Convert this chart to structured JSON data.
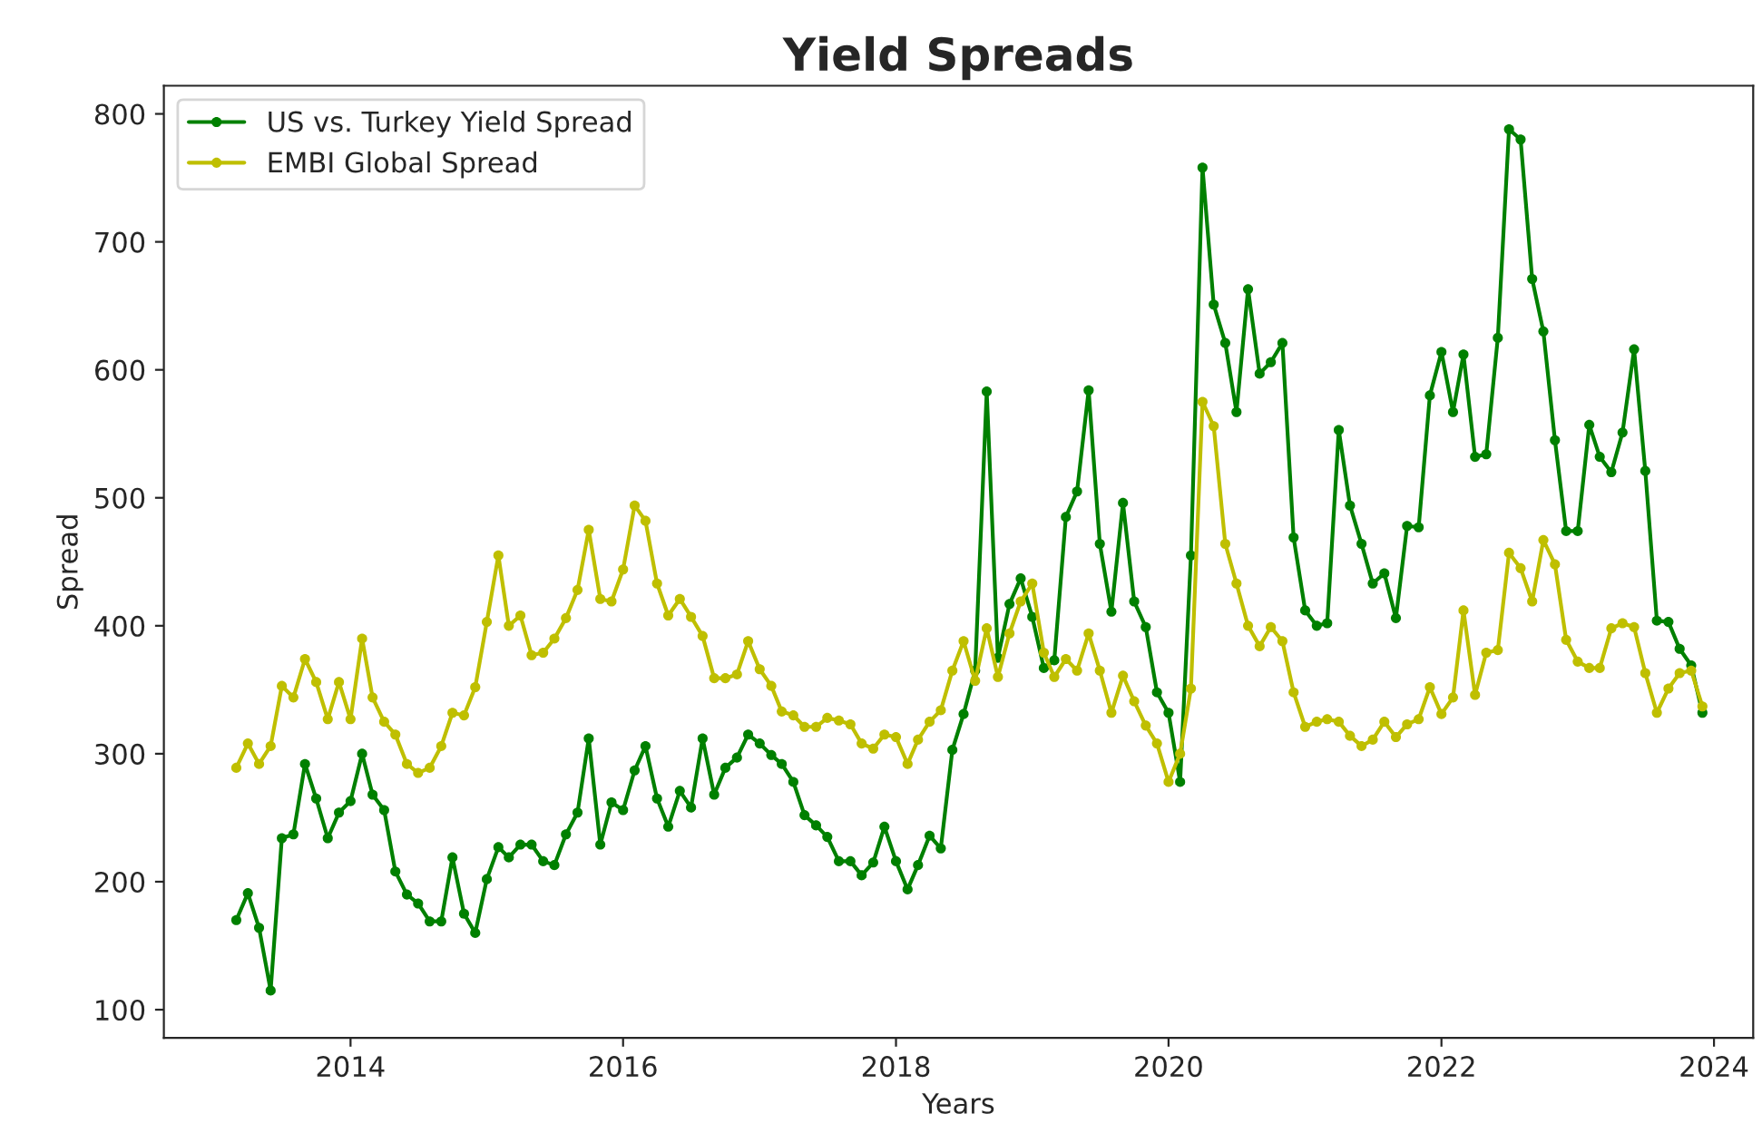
{
  "chart_data": {
    "type": "line",
    "title": "Yield Spreads",
    "xlabel": "Years",
    "ylabel": "Spread",
    "x": [
      "2013-03",
      "2013-04",
      "2013-05",
      "2013-06",
      "2013-07",
      "2013-08",
      "2013-09",
      "2013-10",
      "2013-11",
      "2013-12",
      "2014-01",
      "2014-02",
      "2014-03",
      "2014-04",
      "2014-05",
      "2014-06",
      "2014-07",
      "2014-08",
      "2014-09",
      "2014-10",
      "2014-11",
      "2014-12",
      "2015-01",
      "2015-02",
      "2015-03",
      "2015-04",
      "2015-05",
      "2015-06",
      "2015-07",
      "2015-08",
      "2015-09",
      "2015-10",
      "2015-11",
      "2015-12",
      "2016-01",
      "2016-02",
      "2016-03",
      "2016-04",
      "2016-05",
      "2016-06",
      "2016-07",
      "2016-08",
      "2016-09",
      "2016-10",
      "2016-11",
      "2016-12",
      "2017-01",
      "2017-02",
      "2017-03",
      "2017-04",
      "2017-05",
      "2017-06",
      "2017-07",
      "2017-08",
      "2017-09",
      "2017-10",
      "2017-11",
      "2017-12",
      "2018-01",
      "2018-02",
      "2018-03",
      "2018-04",
      "2018-05",
      "2018-06",
      "2018-07",
      "2018-08",
      "2018-09",
      "2018-10",
      "2018-11",
      "2018-12",
      "2019-01",
      "2019-02",
      "2019-03",
      "2019-04",
      "2019-05",
      "2019-06",
      "2019-07",
      "2019-08",
      "2019-09",
      "2019-10",
      "2019-11",
      "2019-12",
      "2020-01",
      "2020-02",
      "2020-03",
      "2020-04",
      "2020-05",
      "2020-06",
      "2020-07",
      "2020-08",
      "2020-09",
      "2020-10",
      "2020-11",
      "2020-12",
      "2021-01",
      "2021-02",
      "2021-03",
      "2021-04",
      "2021-05",
      "2021-06",
      "2021-07",
      "2021-08",
      "2021-09",
      "2021-10",
      "2021-11",
      "2021-12",
      "2022-01",
      "2022-02",
      "2022-03",
      "2022-04",
      "2022-05",
      "2022-06",
      "2022-07",
      "2022-08",
      "2022-09",
      "2022-10",
      "2022-11",
      "2022-12",
      "2023-01",
      "2023-02",
      "2023-03",
      "2023-04",
      "2023-05",
      "2023-06",
      "2023-07",
      "2023-08",
      "2023-09",
      "2023-10",
      "2023-11",
      "2023-12"
    ],
    "series": [
      {
        "name": "US vs. Turkey Yield Spread",
        "color": "#008000",
        "values": [
          170,
          191,
          164,
          115,
          234,
          237,
          292,
          265,
          234,
          254,
          263,
          300,
          268,
          256,
          208,
          190,
          183,
          169,
          169,
          219,
          175,
          160,
          202,
          227,
          219,
          229,
          229,
          216,
          213,
          237,
          254,
          312,
          229,
          262,
          256,
          287,
          306,
          265,
          243,
          271,
          258,
          312,
          268,
          289,
          297,
          315,
          308,
          299,
          292,
          278,
          252,
          244,
          235,
          216,
          216,
          205,
          215,
          243,
          216,
          194,
          213,
          236,
          226,
          303,
          331,
          365,
          583,
          375,
          417,
          437,
          407,
          367,
          373,
          485,
          505,
          584,
          464,
          411,
          496,
          419,
          399,
          348,
          332,
          278,
          455,
          758,
          651,
          621,
          567,
          663,
          597,
          606,
          621,
          469,
          412,
          400,
          402,
          553,
          494,
          464,
          433,
          441,
          406,
          478,
          477,
          580,
          614,
          567,
          612,
          532,
          534,
          625,
          788,
          780,
          671,
          630,
          545,
          474,
          474,
          557,
          532,
          520,
          551,
          616,
          521,
          404,
          403,
          382,
          369,
          332
        ]
      },
      {
        "name": "EMBI Global Spread",
        "color": "#bfbf00",
        "values": [
          289,
          308,
          292,
          306,
          353,
          344,
          374,
          356,
          327,
          356,
          327,
          390,
          344,
          325,
          315,
          292,
          285,
          289,
          306,
          332,
          330,
          352,
          403,
          455,
          400,
          408,
          377,
          379,
          390,
          406,
          428,
          475,
          421,
          419,
          444,
          494,
          482,
          433,
          408,
          421,
          407,
          392,
          359,
          359,
          362,
          388,
          366,
          353,
          333,
          330,
          321,
          321,
          328,
          326,
          323,
          308,
          304,
          315,
          313,
          292,
          311,
          325,
          334,
          365,
          388,
          357,
          398,
          360,
          394,
          419,
          433,
          379,
          360,
          374,
          365,
          394,
          365,
          332,
          361,
          341,
          322,
          308,
          278,
          300,
          351,
          575,
          556,
          464,
          433,
          400,
          384,
          399,
          388,
          348,
          321,
          325,
          327,
          325,
          314,
          306,
          311,
          325,
          313,
          323,
          327,
          352,
          331,
          344,
          412,
          346,
          379,
          381,
          457,
          445,
          419,
          467,
          448,
          389,
          372,
          367,
          367,
          398,
          402,
          399,
          363,
          332,
          351,
          363,
          365,
          337
        ]
      }
    ],
    "xlim": [
      "2012-08-19",
      "2024-04-15"
    ],
    "xticks": [
      "2014",
      "2016",
      "2018",
      "2020",
      "2022",
      "2024"
    ],
    "ylim": [
      78,
      822
    ],
    "yticks": [
      100,
      200,
      300,
      400,
      500,
      600,
      700,
      800
    ],
    "marker": "circle",
    "line_style": "solid",
    "legend": "top left",
    "grid": false
  }
}
